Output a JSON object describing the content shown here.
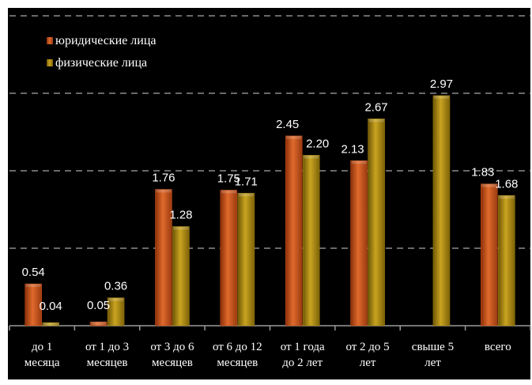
{
  "chart_data": {
    "type": "bar",
    "title": "",
    "xlabel": "",
    "ylabel": "",
    "ylim": [
      0,
      4
    ],
    "grid": true,
    "legend_position": "top-left",
    "categories": [
      [
        "до 1",
        "месяца"
      ],
      [
        "от 1 до 3",
        "месяцев"
      ],
      [
        "от 3 до 6",
        "месяцев"
      ],
      [
        "от 6 до 12",
        "месяцев"
      ],
      [
        "от 1 года",
        "до 2 лет"
      ],
      [
        "от 2 до 5",
        "лет"
      ],
      [
        "свыше 5",
        "лет"
      ],
      [
        "всего",
        ""
      ]
    ],
    "series": [
      {
        "name": "юридические лица",
        "color": "#c8501a",
        "values": [
          0.54,
          0.05,
          1.76,
          1.75,
          2.45,
          2.13,
          null,
          1.83
        ],
        "labels": [
          "0.54",
          "0.05",
          "1.76",
          "1.75",
          "2.45",
          "2.13",
          "",
          "1.83"
        ]
      },
      {
        "name": "физические лица",
        "color": "#a8860e",
        "values": [
          0.04,
          0.36,
          1.28,
          1.71,
          2.2,
          2.67,
          2.97,
          1.68
        ],
        "labels": [
          "0.04",
          "0.36",
          "1.28",
          "1.71",
          "2.20",
          "2.67",
          "2.97",
          "1.68"
        ]
      }
    ]
  }
}
